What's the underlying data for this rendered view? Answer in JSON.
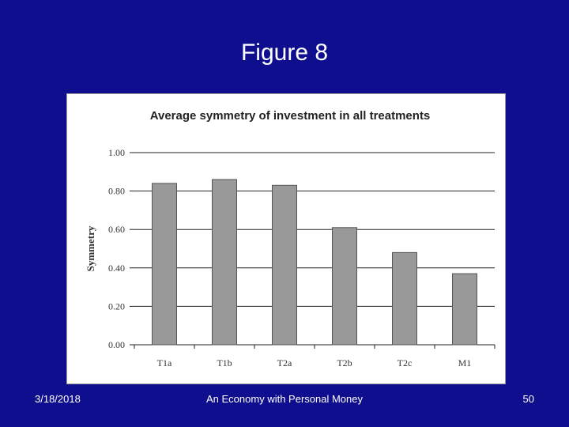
{
  "slide": {
    "title": "Figure 8",
    "footer_date": "3/18/2018",
    "footer_center": "An Economy with Personal Money",
    "footer_page": "50"
  },
  "chart_data": {
    "type": "bar",
    "title": "Average symmetry of investment in all treatments",
    "xlabel": "",
    "ylabel": "Symmetry",
    "categories": [
      "T1a",
      "T1b",
      "T2a",
      "T2b",
      "T2c",
      "M1"
    ],
    "values": [
      0.84,
      0.86,
      0.83,
      0.61,
      0.48,
      0.37
    ],
    "ylim": [
      0,
      1.0
    ],
    "yticks": [
      "0.00",
      "0.20",
      "0.40",
      "0.60",
      "0.80",
      "1.00"
    ],
    "grid": true,
    "legend": "none",
    "bar_color": "#999999",
    "bar_stroke": "#555555"
  }
}
